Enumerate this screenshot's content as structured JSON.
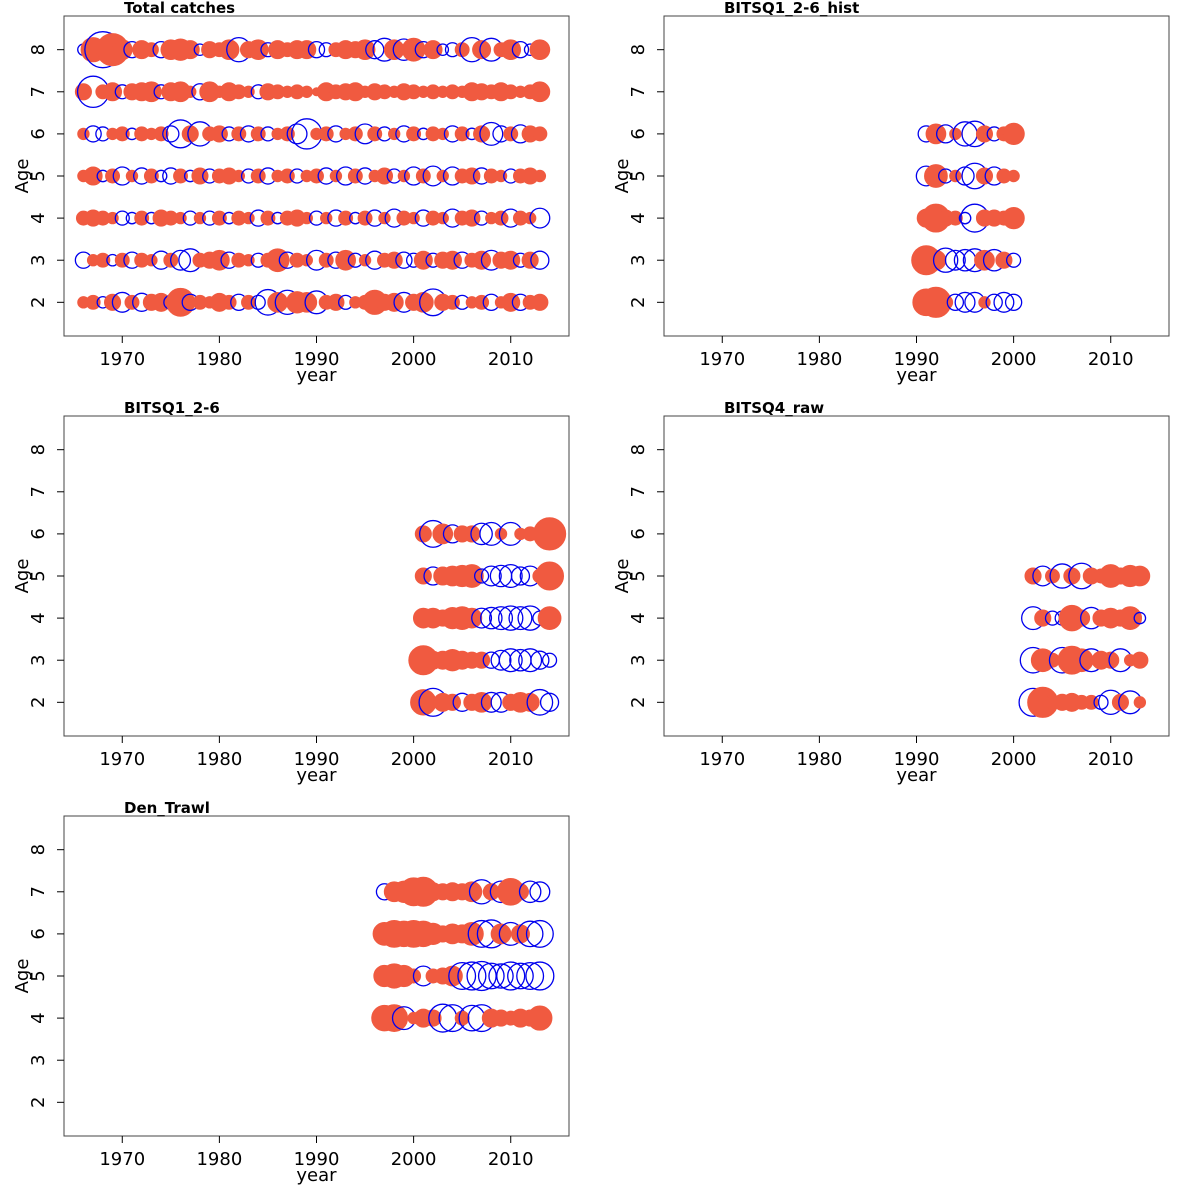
{
  "colors": {
    "positive": "#0000ee",
    "negative": "#f05a40",
    "frame": "#444444"
  },
  "chart_data": [
    {
      "type": "scatter",
      "subtype": "bubble",
      "title": "Total catches",
      "xlabel": "year",
      "ylabel": "Age",
      "xlim": [
        1964,
        2016
      ],
      "ylim": [
        1.2,
        8.8
      ],
      "xticks": [
        1970,
        1980,
        1990,
        2000,
        2010
      ],
      "yticks": [
        2,
        3,
        4,
        5,
        6,
        7,
        8
      ],
      "years": [
        1966,
        2013
      ],
      "ages": [
        2,
        3,
        4,
        5,
        6,
        7,
        8
      ],
      "residuals_by_age": {
        "8": [
          -0.2,
          0.9,
          -2.0,
          1.6,
          0.6,
          -0.4,
          0.5,
          0.3,
          -0.4,
          0.6,
          0.7,
          0.5,
          -0.2,
          0.4,
          0.3,
          0.6,
          -0.9,
          0.4,
          0.6,
          -0.3,
          0.5,
          0.3,
          0.5,
          0.5,
          -0.4,
          -0.3,
          0.3,
          0.5,
          0.4,
          0.6,
          -0.5,
          -0.8,
          0.6,
          -0.7,
          0.8,
          -0.4,
          0.5,
          -0.2,
          -0.3,
          0.3,
          -0.9,
          0.5,
          -0.8,
          0.3,
          0.6,
          -0.4,
          -0.2,
          0.6
        ],
        "7": [
          0.4,
          -1.5,
          0.3,
          0.5,
          -0.3,
          0.4,
          0.5,
          0.6,
          -0.3,
          0.5,
          0.6,
          0.2,
          -0.4,
          0.6,
          0.2,
          0.5,
          0.3,
          0.2,
          -0.3,
          0.4,
          0.3,
          0.2,
          0.3,
          0.2,
          0.1,
          0.5,
          0.3,
          0.4,
          0.5,
          0.2,
          0.4,
          0.3,
          0.2,
          0.4,
          0.3,
          0.2,
          0.3,
          0.2,
          0.3,
          0.2,
          0.5,
          0.4,
          0.3,
          0.5,
          0.3,
          0.2,
          0.3,
          0.6
        ],
        "6": [
          0.2,
          -0.4,
          -0.3,
          0.2,
          0.3,
          -0.2,
          0.3,
          0.2,
          0.3,
          -0.4,
          -1.2,
          0.4,
          -0.9,
          0.3,
          0.4,
          -0.3,
          0.3,
          -0.4,
          0.3,
          -0.3,
          0.2,
          0.3,
          -0.6,
          -1.4,
          0.2,
          0.3,
          -0.4,
          0.2,
          0.3,
          -0.6,
          0.3,
          -0.3,
          0.2,
          -0.4,
          0.3,
          -0.2,
          0.3,
          0.2,
          -0.4,
          0.3,
          -0.2,
          0.4,
          -0.8,
          -0.4,
          0.3,
          -0.5,
          0.4,
          0.3
        ],
        "5": [
          0.2,
          0.5,
          -0.2,
          0.3,
          -0.5,
          0.2,
          -0.4,
          0.3,
          -0.2,
          -0.4,
          0.3,
          -0.2,
          0.4,
          -0.3,
          0.3,
          0.4,
          0.2,
          -0.3,
          0.3,
          -0.4,
          0.2,
          0.3,
          -0.3,
          0.2,
          0.3,
          -0.4,
          0.2,
          -0.5,
          0.3,
          -0.4,
          0.2,
          0.4,
          -0.3,
          0.2,
          -0.5,
          0.3,
          -0.6,
          0.2,
          -0.5,
          0.3,
          0.4,
          -0.4,
          0.3,
          0.2,
          -0.3,
          0.3,
          0.4,
          0.2
        ],
        "4": [
          0.3,
          0.4,
          0.3,
          0.2,
          -0.3,
          -0.2,
          0.3,
          -0.2,
          0.4,
          0.3,
          0.2,
          -0.3,
          0.2,
          -0.3,
          0.3,
          -0.2,
          0.3,
          0.2,
          -0.4,
          0.3,
          -0.2,
          0.3,
          0.4,
          0.2,
          -0.3,
          0.2,
          -0.4,
          0.3,
          -0.2,
          0.3,
          -0.4,
          0.2,
          -0.5,
          0.3,
          0.2,
          -0.4,
          0.3,
          0.2,
          -0.5,
          0.3,
          0.4,
          -0.3,
          0.2,
          0.3,
          -0.5,
          0.3,
          0.2,
          -0.6
        ],
        "3": [
          -0.4,
          0.2,
          0.3,
          -0.2,
          0.3,
          -0.4,
          0.3,
          0.2,
          -0.5,
          0.3,
          -0.6,
          -0.8,
          0.3,
          0.4,
          0.6,
          -0.4,
          0.3,
          0.2,
          -0.3,
          0.3,
          0.8,
          -0.4,
          0.3,
          0.2,
          -0.6,
          0.3,
          -0.4,
          0.6,
          -0.3,
          0.2,
          -0.5,
          0.3,
          0.4,
          -0.4,
          -0.3,
          0.5,
          -0.3,
          0.4,
          0.5,
          -0.4,
          0.3,
          0.5,
          -0.6,
          0.4,
          0.5,
          -0.3,
          0.4,
          -0.5
        ],
        "2": [
          0.2,
          0.3,
          -0.2,
          0.4,
          -0.6,
          0.3,
          -0.5,
          0.4,
          0.5,
          -0.3,
          1.2,
          -0.4,
          0.3,
          0.2,
          0.5,
          0.3,
          -0.4,
          0.3,
          -0.3,
          -1.0,
          0.6,
          -0.9,
          0.7,
          0.6,
          -0.8,
          0.3,
          0.4,
          -0.3,
          0.2,
          0.3,
          0.9,
          0.4,
          0.5,
          -0.6,
          0.4,
          0.6,
          -1.1,
          0.4,
          0.3,
          -0.3,
          0.2,
          0.3,
          -0.4,
          0.2,
          0.5,
          -0.4,
          0.3,
          0.4
        ]
      }
    },
    {
      "type": "scatter",
      "subtype": "bubble",
      "title": "BITSQ1_2-6_hist",
      "xlabel": "year",
      "ylabel": "Age",
      "xlim": [
        1964,
        2016
      ],
      "ylim": [
        1.2,
        8.8
      ],
      "xticks": [
        1970,
        1980,
        1990,
        2000,
        2010
      ],
      "yticks": [
        2,
        3,
        4,
        5,
        6,
        7,
        8
      ],
      "years": [
        1991,
        2000
      ],
      "ages": [
        2,
        3,
        4,
        5,
        6
      ],
      "residuals_by_age": {
        "6": [
          -0.4,
          0.6,
          -0.5,
          0.2,
          -0.9,
          -1.0,
          0.4,
          -0.3,
          0.3,
          0.7
        ],
        "5": [
          -0.6,
          0.8,
          -0.3,
          0.2,
          -0.5,
          -1.0,
          0.4,
          -0.5,
          0.3,
          0.2
        ],
        "4": [
          0.5,
          1.2,
          0.4,
          0.3,
          -0.2,
          -1.2,
          0.4,
          0.4,
          0.3,
          0.7
        ],
        "3": [
          1.3,
          0.6,
          -0.9,
          -0.6,
          -0.7,
          -0.8,
          0.6,
          -0.7,
          0.4,
          -0.3
        ],
        "2": [
          1.1,
          1.4,
          0.3,
          -0.4,
          -0.6,
          -0.6,
          0.2,
          -0.4,
          -0.6,
          -0.4
        ]
      }
    },
    {
      "type": "scatter",
      "subtype": "bubble",
      "title": "BITSQ1_2-6",
      "xlabel": "year",
      "ylabel": "Age",
      "xlim": [
        1964,
        2016
      ],
      "ylim": [
        1.2,
        8.8
      ],
      "xticks": [
        1970,
        1980,
        1990,
        2000,
        2010
      ],
      "yticks": [
        2,
        3,
        4,
        5,
        6,
        7,
        8
      ],
      "years": [
        2001,
        2014
      ],
      "ages": [
        2,
        3,
        4,
        5,
        6
      ],
      "residuals_by_age": {
        "6": [
          0.4,
          -1.1,
          0.6,
          -0.5,
          0.4,
          0.4,
          -0.7,
          -0.8,
          0.2,
          -0.8,
          0.2,
          0.3,
          0.2,
          1.6
        ],
        "5": [
          0.4,
          -0.5,
          0.5,
          0.6,
          0.7,
          0.8,
          -0.3,
          -0.6,
          -0.7,
          -0.8,
          -0.5,
          -0.6,
          0.3,
          1.2
        ],
        "4": [
          0.6,
          0.6,
          0.4,
          0.7,
          0.8,
          0.6,
          -0.6,
          -0.7,
          -0.8,
          -0.9,
          -0.8,
          -0.9,
          -0.3,
          0.8
        ],
        "3": [
          1.3,
          0.5,
          0.5,
          0.7,
          0.5,
          0.4,
          0.4,
          -0.4,
          -0.6,
          -0.8,
          -0.7,
          -0.8,
          -0.5,
          -0.3
        ],
        "2": [
          1.0,
          -1.2,
          0.5,
          0.4,
          -0.5,
          0.4,
          0.6,
          -0.6,
          -0.6,
          0.4,
          0.6,
          0.5,
          -1.0,
          -0.5
        ]
      }
    },
    {
      "type": "scatter",
      "subtype": "bubble",
      "title": "BITSQ4_raw",
      "xlabel": "year",
      "ylabel": "Age",
      "xlim": [
        1964,
        2016
      ],
      "ylim": [
        1.2,
        8.8
      ],
      "xticks": [
        1970,
        1980,
        1990,
        2000,
        2010
      ],
      "yticks": [
        2,
        3,
        4,
        5,
        6,
        7,
        8
      ],
      "years": [
        2002,
        2013
      ],
      "ages": [
        2,
        3,
        4,
        5
      ],
      "residuals_by_age": {
        "5": [
          0.4,
          -0.6,
          0.3,
          -0.9,
          0.4,
          -1.0,
          0.4,
          0.3,
          0.8,
          0.4,
          0.7,
          0.6
        ],
        "4": [
          -0.8,
          0.4,
          -0.3,
          -0.3,
          1.0,
          0.4,
          -0.7,
          0.4,
          0.6,
          0.4,
          0.8,
          -0.2
        ],
        "3": [
          -1.0,
          0.8,
          0.3,
          -1.0,
          1.2,
          0.8,
          -0.8,
          0.5,
          0.4,
          -0.8,
          0.2,
          0.4
        ],
        "2": [
          -1.2,
          1.4,
          0.3,
          0.4,
          0.5,
          0.3,
          0.3,
          -0.3,
          -0.9,
          0.4,
          -0.8,
          0.2
        ]
      }
    },
    {
      "type": "scatter",
      "subtype": "bubble",
      "title": "Den_Trawl",
      "xlabel": "year",
      "ylabel": "Age",
      "xlim": [
        1964,
        2016
      ],
      "ylim": [
        1.2,
        8.8
      ],
      "xticks": [
        1970,
        1980,
        1990,
        2000,
        2010
      ],
      "yticks": [
        2,
        3,
        4,
        5,
        6,
        7,
        8
      ],
      "years": [
        1997,
        2013
      ],
      "ages": [
        4,
        5,
        6,
        7
      ],
      "residuals_by_age": {
        "7": [
          -0.4,
          0.6,
          0.7,
          1.2,
          1.3,
          0.5,
          0.4,
          0.5,
          0.4,
          0.6,
          -0.9,
          0.4,
          -0.7,
          1.1,
          0.4,
          -0.7,
          -0.6
        ],
        "6": [
          0.8,
          1.1,
          1.0,
          1.1,
          1.0,
          0.7,
          0.4,
          0.6,
          0.5,
          0.8,
          -1.1,
          -1.2,
          0.6,
          -0.8,
          0.5,
          -1.0,
          -1.1
        ],
        "5": [
          0.7,
          0.9,
          0.7,
          0.3,
          -0.6,
          0.3,
          0.4,
          0.6,
          -1.1,
          -1.2,
          -1.3,
          -1.0,
          -0.9,
          -1.2,
          -1.0,
          -1.1,
          -1.2
        ],
        "4": [
          1.0,
          1.1,
          -0.8,
          0.2,
          0.5,
          0.4,
          -1.2,
          -1.1,
          0.3,
          -1.0,
          -1.1,
          0.5,
          0.4,
          0.3,
          0.5,
          0.4,
          0.9
        ]
      }
    }
  ]
}
